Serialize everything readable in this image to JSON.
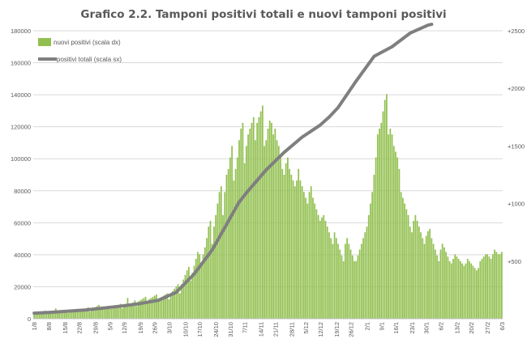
{
  "chart_data": {
    "type": "bar+line",
    "title": "Grafico 2.2. Tamponi positivi totali e nuovi tamponi positivi",
    "x_start": "1/8",
    "x_end": "6/3",
    "x_tick_labels": [
      "1/8",
      "8/8",
      "15/8",
      "22/8",
      "29/8",
      "5/9",
      "12/9",
      "19/9",
      "26/9",
      "3/10",
      "10/10",
      "17/10",
      "24/10",
      "31/10",
      "7/11",
      "14/11",
      "21/11",
      "28/11",
      "5/12",
      "12/12",
      "19/12",
      "26/12",
      "2/1",
      "9/1",
      "16/1",
      "23/1",
      "30/1",
      "6/2",
      "13/2",
      "20/2",
      "27/2",
      "6/3"
    ],
    "y_left_ticks": [
      "0",
      "20000",
      "40000",
      "60000",
      "80000",
      "100000",
      "120000",
      "140000",
      "160000",
      "180000"
    ],
    "y_right_ticks": [
      "+500",
      "+1000",
      "+1500",
      "+2000",
      "+2500"
    ],
    "y_left_lim": [
      0,
      180000
    ],
    "y_right_lim": [
      0,
      2500
    ],
    "legend": {
      "placement": "top-left"
    },
    "series": [
      {
        "name": "nuovi positivi (scala dx)",
        "type": "bar",
        "axis": "right",
        "color": "#92c050",
        "values": [
          45,
          40,
          50,
          60,
          50,
          55,
          70,
          45,
          50,
          55,
          60,
          70,
          90,
          60,
          55,
          60,
          65,
          70,
          75,
          50,
          60,
          70,
          75,
          80,
          85,
          60,
          70,
          80,
          85,
          90,
          100,
          60,
          80,
          90,
          100,
          110,
          120,
          80,
          90,
          95,
          100,
          105,
          110,
          85,
          100,
          105,
          115,
          120,
          130,
          90,
          120,
          130,
          180,
          120,
          130,
          140,
          160,
          110,
          150,
          160,
          170,
          180,
          190,
          150,
          170,
          180,
          190,
          200,
          210,
          160,
          180,
          190,
          200,
          210,
          220,
          170,
          220,
          240,
          260,
          280,
          300,
          220,
          300,
          340,
          380,
          420,
          450,
          330,
          400,
          460,
          520,
          580,
          560,
          480,
          560,
          620,
          700,
          800,
          850,
          650,
          800,
          900,
          1000,
          1100,
          1150,
          900,
          1100,
          1250,
          1300,
          1400,
          1500,
          1200,
          1300,
          1400,
          1550,
          1650,
          1700,
          1350,
          1500,
          1600,
          1650,
          1700,
          1750,
          1550,
          1700,
          1750,
          1800,
          1850,
          1500,
          1550,
          1650,
          1720,
          1700,
          1600,
          1650,
          1550,
          1500,
          1400,
          1300,
          1250,
          1350,
          1400,
          1300,
          1250,
          1200,
          1150,
          1200,
          1300,
          1200,
          1150,
          1100,
          1050,
          1000,
          1100,
          1150,
          1050,
          1000,
          950,
          900,
          850,
          880,
          900,
          850,
          800,
          750,
          700,
          650,
          750,
          700,
          650,
          600,
          550,
          500,
          650,
          700,
          650,
          600,
          550,
          500,
          500,
          550,
          600,
          650,
          700,
          750,
          800,
          900,
          1000,
          1100,
          1250,
          1400,
          1600,
          1650,
          1700,
          1800,
          1900,
          1950,
          1600,
          1650,
          1600,
          1500,
          1450,
          1400,
          1300,
          1100,
          1050,
          1000,
          950,
          900,
          800,
          750,
          850,
          900,
          850,
          800,
          750,
          700,
          650,
          720,
          760,
          780,
          700,
          650,
          600,
          550,
          500,
          600,
          650,
          620,
          580,
          540,
          500,
          480,
          520,
          560,
          540,
          520,
          500,
          480,
          460,
          480,
          520,
          500,
          480,
          460,
          440,
          420,
          440,
          500,
          520,
          540,
          560,
          560,
          540,
          520,
          560,
          600,
          580,
          560,
          560,
          580
        ]
      },
      {
        "name": "positivi totali (scala sx)",
        "type": "line",
        "axis": "left",
        "color": "#7f7f7f",
        "x_index": [
          0,
          9,
          29,
          49,
          59,
          69,
          79,
          89,
          99,
          109,
          114,
          119,
          129,
          139,
          149,
          159,
          164,
          169,
          179,
          189,
          199,
          209,
          219,
          221
        ],
        "values": [
          3500,
          4000,
          5500,
          8000,
          9500,
          11500,
          16500,
          28000,
          43000,
          63000,
          73000,
          80000,
          93000,
          104000,
          113500,
          121000,
          126000,
          132000,
          148500,
          164000,
          170000,
          178500,
          183500,
          184000
        ]
      }
    ]
  }
}
